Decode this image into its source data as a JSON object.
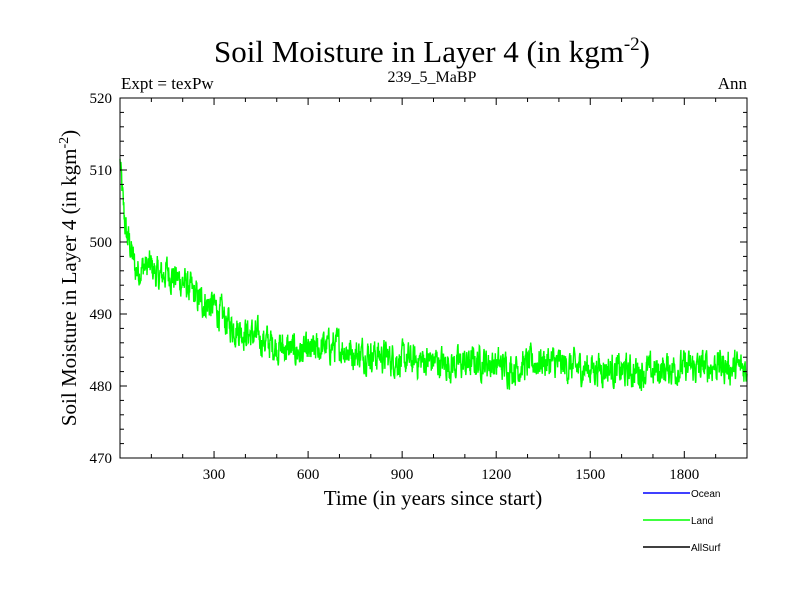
{
  "title": {
    "main": "Soil Moisture in Layer 4 (in kgm",
    "sup": "-2",
    "close": ")"
  },
  "header": {
    "left": "Expt = texPw",
    "center": "239_5_MaBP",
    "right": "Ann"
  },
  "chart_data": {
    "type": "line",
    "title": "Soil Moisture in Layer 4 (in kgm-2)",
    "xlabel": "Time (in years since start)",
    "ylabel": {
      "main": "Soil Moisture in Layer 4 (in kgm",
      "sup": "-2",
      "close": ")"
    },
    "xlim": [
      0,
      2000
    ],
    "ylim": [
      470,
      520
    ],
    "x_ticks": [
      300,
      600,
      900,
      1200,
      1500,
      1800
    ],
    "y_ticks": [
      470,
      480,
      490,
      500,
      510,
      520
    ],
    "legend_position": "bottom-right",
    "series": [
      {
        "name": "Ocean",
        "color": "#0000ff",
        "x": [],
        "values": []
      },
      {
        "name": "Land",
        "color": "#00ff00",
        "x": [
          0,
          10,
          20,
          30,
          50,
          75,
          100,
          125,
          150,
          175,
          200,
          250,
          300,
          350,
          400,
          450,
          500,
          550,
          600,
          650,
          700,
          750,
          800,
          850,
          900,
          950,
          1000,
          1050,
          1100,
          1150,
          1200,
          1250,
          1300,
          1350,
          1400,
          1450,
          1500,
          1550,
          1600,
          1650,
          1700,
          1750,
          1800,
          1850,
          1900,
          1950,
          2000
        ],
        "values": [
          511,
          505,
          501,
          500,
          496,
          496.5,
          496.5,
          495,
          496,
          495,
          494.5,
          492,
          491,
          488.5,
          487.5,
          486.5,
          485.5,
          485,
          484.5,
          485.5,
          485.5,
          484.5,
          484.5,
          484,
          483.5,
          483.5,
          483.5,
          483,
          483,
          483.5,
          483,
          482.5,
          483,
          483.5,
          483,
          482.5,
          482.5,
          482.5,
          482,
          482,
          482,
          482.5,
          482.5,
          482.5,
          483,
          482.5,
          482.5
        ]
      },
      {
        "name": "AllSurf",
        "color": "#000000",
        "x": [],
        "values": []
      }
    ]
  }
}
